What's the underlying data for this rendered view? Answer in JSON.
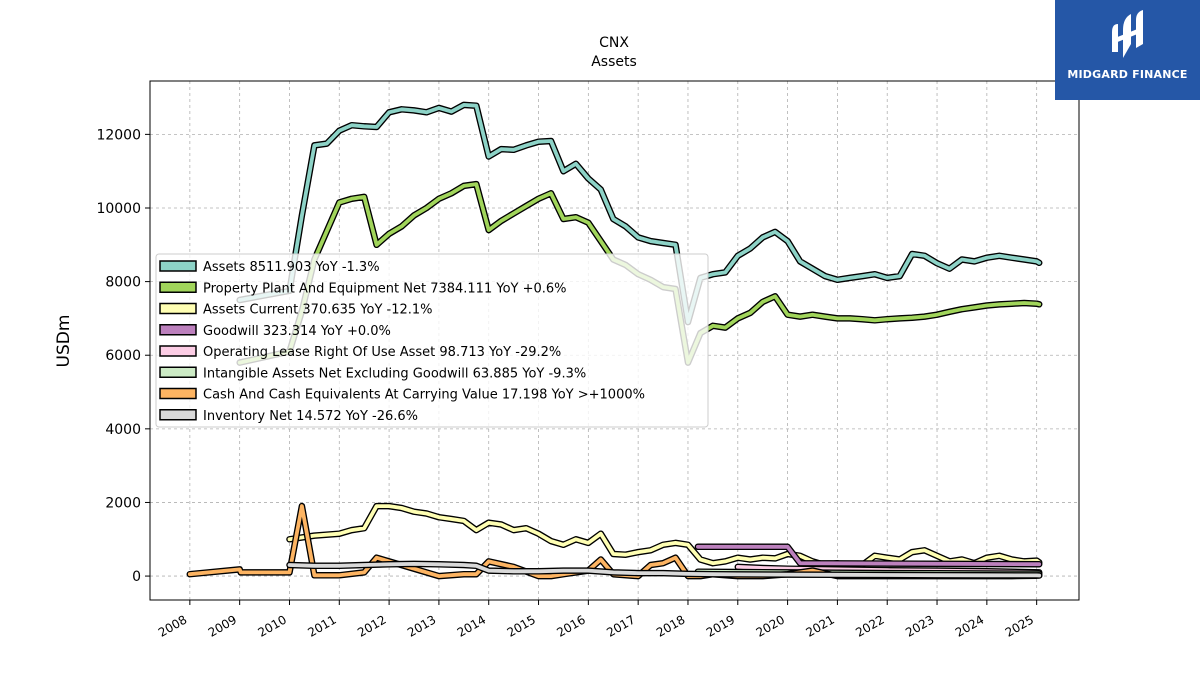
{
  "chart_data": {
    "type": "line",
    "title": "CNX",
    "subtitle": "Assets",
    "xlabel": "",
    "ylabel": "USDm",
    "xlim": [
      2007.2,
      2025.85
    ],
    "ylim": [
      -650,
      13450
    ],
    "yticks": [
      0,
      2000,
      4000,
      6000,
      8000,
      10000,
      12000
    ],
    "xticks": [
      "2008",
      "2009",
      "2010",
      "2011",
      "2012",
      "2013",
      "2014",
      "2015",
      "2016",
      "2017",
      "2018",
      "2019",
      "2020",
      "2021",
      "2022",
      "2023",
      "2024",
      "2025"
    ],
    "grid": true,
    "legend_position": "center-left",
    "series": [
      {
        "name": "Assets",
        "legend": "Assets  8511.903 YoY -1.3%",
        "color": "#8dd3c7",
        "points": [
          [
            2009,
            7500
          ],
          [
            2010,
            7750
          ],
          [
            2010.25,
            9800
          ],
          [
            2010.5,
            11700
          ],
          [
            2010.75,
            11750
          ],
          [
            2011,
            12100
          ],
          [
            2011.25,
            12250
          ],
          [
            2011.5,
            12220
          ],
          [
            2011.75,
            12200
          ],
          [
            2012,
            12600
          ],
          [
            2012.25,
            12680
          ],
          [
            2012.5,
            12650
          ],
          [
            2012.75,
            12600
          ],
          [
            2013,
            12720
          ],
          [
            2013.25,
            12620
          ],
          [
            2013.5,
            12800
          ],
          [
            2013.75,
            12780
          ],
          [
            2014,
            11400
          ],
          [
            2014.25,
            11600
          ],
          [
            2014.5,
            11580
          ],
          [
            2014.75,
            11700
          ],
          [
            2015,
            11800
          ],
          [
            2015.25,
            11820
          ],
          [
            2015.5,
            11000
          ],
          [
            2015.75,
            11200
          ],
          [
            2016,
            10800
          ],
          [
            2016.25,
            10500
          ],
          [
            2016.5,
            9700
          ],
          [
            2016.75,
            9500
          ],
          [
            2017,
            9200
          ],
          [
            2017.25,
            9100
          ],
          [
            2017.5,
            9050
          ],
          [
            2017.75,
            9000
          ],
          [
            2018,
            6900
          ],
          [
            2018.25,
            8100
          ],
          [
            2018.5,
            8200
          ],
          [
            2018.75,
            8250
          ],
          [
            2019,
            8700
          ],
          [
            2019.25,
            8900
          ],
          [
            2019.5,
            9200
          ],
          [
            2019.75,
            9350
          ],
          [
            2020,
            9100
          ],
          [
            2020.25,
            8550
          ],
          [
            2020.5,
            8350
          ],
          [
            2020.75,
            8150
          ],
          [
            2021,
            8050
          ],
          [
            2021.25,
            8100
          ],
          [
            2021.5,
            8150
          ],
          [
            2021.75,
            8200
          ],
          [
            2022,
            8100
          ],
          [
            2022.25,
            8150
          ],
          [
            2022.5,
            8750
          ],
          [
            2022.75,
            8700
          ],
          [
            2023,
            8500
          ],
          [
            2023.25,
            8350
          ],
          [
            2023.5,
            8600
          ],
          [
            2023.75,
            8550
          ],
          [
            2024,
            8650
          ],
          [
            2024.25,
            8700
          ],
          [
            2024.5,
            8650
          ],
          [
            2024.75,
            8600
          ],
          [
            2025,
            8550
          ],
          [
            2025.05,
            8512
          ]
        ]
      },
      {
        "name": "Property Plant And Equipment Net",
        "legend": "Property Plant And Equipment Net  7384.111 YoY +0.6%",
        "color": "#a1d55b",
        "points": [
          [
            2009,
            5800
          ],
          [
            2010,
            6100
          ],
          [
            2010.25,
            7200
          ],
          [
            2010.5,
            8600
          ],
          [
            2011,
            10150
          ],
          [
            2011.25,
            10250
          ],
          [
            2011.5,
            10300
          ],
          [
            2011.75,
            9000
          ],
          [
            2012,
            9300
          ],
          [
            2012.25,
            9500
          ],
          [
            2012.5,
            9800
          ],
          [
            2012.75,
            10000
          ],
          [
            2013,
            10250
          ],
          [
            2013.25,
            10400
          ],
          [
            2013.5,
            10600
          ],
          [
            2013.75,
            10650
          ],
          [
            2014,
            9400
          ],
          [
            2014.25,
            9650
          ],
          [
            2014.5,
            9850
          ],
          [
            2014.75,
            10050
          ],
          [
            2015,
            10250
          ],
          [
            2015.25,
            10400
          ],
          [
            2015.5,
            9700
          ],
          [
            2015.75,
            9750
          ],
          [
            2016,
            9600
          ],
          [
            2016.25,
            9100
          ],
          [
            2016.5,
            8600
          ],
          [
            2016.75,
            8450
          ],
          [
            2017,
            8200
          ],
          [
            2017.25,
            8050
          ],
          [
            2017.5,
            7850
          ],
          [
            2017.75,
            7800
          ],
          [
            2018,
            5800
          ],
          [
            2018.25,
            6600
          ],
          [
            2018.5,
            6800
          ],
          [
            2018.75,
            6750
          ],
          [
            2019,
            7000
          ],
          [
            2019.25,
            7150
          ],
          [
            2019.5,
            7450
          ],
          [
            2019.75,
            7600
          ],
          [
            2020,
            7100
          ],
          [
            2020.25,
            7050
          ],
          [
            2020.5,
            7100
          ],
          [
            2020.75,
            7050
          ],
          [
            2021,
            7000
          ],
          [
            2021.25,
            7000
          ],
          [
            2021.5,
            6980
          ],
          [
            2021.75,
            6950
          ],
          [
            2022,
            6980
          ],
          [
            2022.25,
            7000
          ],
          [
            2022.5,
            7020
          ],
          [
            2022.75,
            7050
          ],
          [
            2023,
            7100
          ],
          [
            2023.25,
            7180
          ],
          [
            2023.5,
            7250
          ],
          [
            2023.75,
            7300
          ],
          [
            2024,
            7350
          ],
          [
            2024.25,
            7380
          ],
          [
            2024.5,
            7400
          ],
          [
            2024.75,
            7420
          ],
          [
            2025,
            7400
          ],
          [
            2025.05,
            7384
          ]
        ]
      },
      {
        "name": "Assets Current",
        "legend": "Assets Current  370.635 YoY -12.1%",
        "color": "#ffffb3",
        "points": [
          [
            2010,
            1000
          ],
          [
            2010.5,
            1100
          ],
          [
            2011,
            1150
          ],
          [
            2011.25,
            1250
          ],
          [
            2011.5,
            1300
          ],
          [
            2011.75,
            1900
          ],
          [
            2012,
            1900
          ],
          [
            2012.25,
            1850
          ],
          [
            2012.5,
            1750
          ],
          [
            2012.75,
            1700
          ],
          [
            2013,
            1600
          ],
          [
            2013.25,
            1550
          ],
          [
            2013.5,
            1500
          ],
          [
            2013.75,
            1250
          ],
          [
            2014,
            1450
          ],
          [
            2014.25,
            1400
          ],
          [
            2014.5,
            1250
          ],
          [
            2014.75,
            1300
          ],
          [
            2015,
            1150
          ],
          [
            2015.25,
            950
          ],
          [
            2015.5,
            850
          ],
          [
            2015.75,
            1000
          ],
          [
            2016,
            900
          ],
          [
            2016.25,
            1150
          ],
          [
            2016.5,
            600
          ],
          [
            2016.75,
            580
          ],
          [
            2017,
            650
          ],
          [
            2017.25,
            700
          ],
          [
            2017.5,
            850
          ],
          [
            2017.75,
            900
          ],
          [
            2018,
            850
          ],
          [
            2018.25,
            450
          ],
          [
            2018.5,
            350
          ],
          [
            2018.75,
            400
          ],
          [
            2019,
            500
          ],
          [
            2019.25,
            450
          ],
          [
            2019.5,
            500
          ],
          [
            2019.75,
            480
          ],
          [
            2020,
            600
          ],
          [
            2020.25,
            550
          ],
          [
            2020.5,
            400
          ],
          [
            2020.75,
            300
          ],
          [
            2021,
            350
          ],
          [
            2021.25,
            250
          ],
          [
            2021.5,
            300
          ],
          [
            2021.75,
            550
          ],
          [
            2022,
            500
          ],
          [
            2022.25,
            450
          ],
          [
            2022.5,
            650
          ],
          [
            2022.75,
            700
          ],
          [
            2023,
            550
          ],
          [
            2023.25,
            400
          ],
          [
            2023.5,
            450
          ],
          [
            2023.75,
            350
          ],
          [
            2024,
            500
          ],
          [
            2024.25,
            550
          ],
          [
            2024.5,
            450
          ],
          [
            2024.75,
            400
          ],
          [
            2025,
            420
          ],
          [
            2025.05,
            371
          ]
        ]
      },
      {
        "name": "Goodwill",
        "legend": "Goodwill  323.314 YoY +0.0%",
        "color": "#bc80bd",
        "points": [
          [
            2018.2,
            796
          ],
          [
            2018.25,
            796
          ],
          [
            2020,
            796
          ],
          [
            2020.25,
            350
          ],
          [
            2025.05,
            323
          ]
        ]
      },
      {
        "name": "Operating Lease Right Of Use Asset",
        "legend": "Operating Lease Right Of Use Asset  98.713 YoY -29.2%",
        "color": "#fccde5",
        "points": [
          [
            2019,
            250
          ],
          [
            2019.5,
            220
          ],
          [
            2020,
            200
          ],
          [
            2021,
            180
          ],
          [
            2022,
            160
          ],
          [
            2023,
            150
          ],
          [
            2024,
            130
          ],
          [
            2025.05,
            99
          ]
        ]
      },
      {
        "name": "Intangible Assets Net Excluding Goodwill",
        "legend": "Intangible Assets Net Excluding Goodwill  63.885 YoY -9.3%",
        "color": "#ccebc5",
        "points": [
          [
            2018.2,
            120
          ],
          [
            2019,
            110
          ],
          [
            2020,
            100
          ],
          [
            2021,
            90
          ],
          [
            2022,
            80
          ],
          [
            2023,
            75
          ],
          [
            2024,
            70
          ],
          [
            2025.05,
            64
          ]
        ]
      },
      {
        "name": "Cash And Cash Equivalents At Carrying Value",
        "legend": "Cash And Cash Equivalents At Carrying Value  17.198 YoY >+1000%",
        "color": "#fdb462",
        "points": [
          [
            2008,
            50
          ],
          [
            2009,
            180
          ],
          [
            2009.02,
            100
          ],
          [
            2010,
            100
          ],
          [
            2010.25,
            1900
          ],
          [
            2010.5,
            20
          ],
          [
            2011,
            20
          ],
          [
            2011.5,
            100
          ],
          [
            2011.75,
            500
          ],
          [
            2012,
            400
          ],
          [
            2012.5,
            200
          ],
          [
            2013,
            0
          ],
          [
            2013.5,
            50
          ],
          [
            2013.75,
            50
          ],
          [
            2014,
            400
          ],
          [
            2014.5,
            250
          ],
          [
            2015,
            0
          ],
          [
            2015.25,
            0
          ],
          [
            2015.5,
            50
          ],
          [
            2015.75,
            100
          ],
          [
            2016,
            150
          ],
          [
            2016.25,
            450
          ],
          [
            2016.5,
            50
          ],
          [
            2017,
            0
          ],
          [
            2017.25,
            300
          ],
          [
            2017.5,
            350
          ],
          [
            2017.75,
            500
          ],
          [
            2018,
            0
          ],
          [
            2018.25,
            0
          ],
          [
            2018.5,
            50
          ],
          [
            2019,
            0
          ],
          [
            2019.5,
            0
          ],
          [
            2020,
            50
          ],
          [
            2020.5,
            150
          ],
          [
            2021,
            0
          ],
          [
            2021.5,
            0
          ],
          [
            2022,
            0
          ],
          [
            2022.5,
            0
          ],
          [
            2023,
            0
          ],
          [
            2023.5,
            0
          ],
          [
            2024,
            0
          ],
          [
            2024.5,
            0
          ],
          [
            2025,
            10
          ],
          [
            2025.05,
            17
          ]
        ]
      },
      {
        "name": "Inventory Net",
        "legend": "Inventory Net  14.572 YoY -26.6%",
        "color": "#d9d9d9",
        "points": [
          [
            2010,
            300
          ],
          [
            2010.5,
            280
          ],
          [
            2011,
            280
          ],
          [
            2011.5,
            300
          ],
          [
            2012,
            320
          ],
          [
            2012.5,
            330
          ],
          [
            2013,
            320
          ],
          [
            2013.5,
            300
          ],
          [
            2013.75,
            280
          ],
          [
            2014,
            150
          ],
          [
            2014.5,
            130
          ],
          [
            2015,
            130
          ],
          [
            2015.5,
            150
          ],
          [
            2016,
            150
          ],
          [
            2016.5,
            100
          ],
          [
            2017,
            80
          ],
          [
            2017.5,
            80
          ],
          [
            2018,
            60
          ],
          [
            2018.5,
            50
          ],
          [
            2019,
            45
          ],
          [
            2020,
            40
          ],
          [
            2021,
            35
          ],
          [
            2022,
            30
          ],
          [
            2023,
            25
          ],
          [
            2024,
            20
          ],
          [
            2025,
            18
          ],
          [
            2025.05,
            15
          ]
        ]
      }
    ]
  },
  "logo": {
    "text": "MIDGARD FINANCE"
  }
}
